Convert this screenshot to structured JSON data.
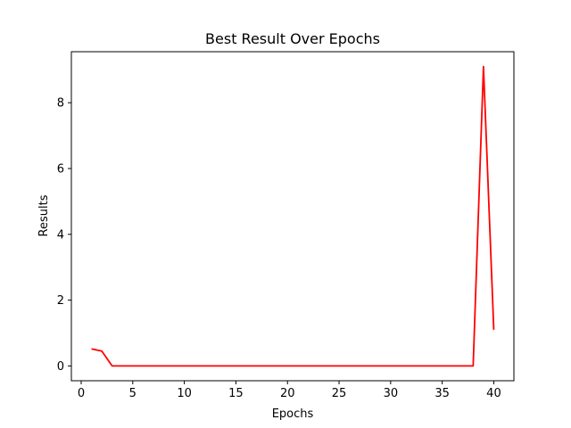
{
  "chart_data": {
    "type": "line",
    "title": "Best Result Over Epochs",
    "xlabel": "Epochs",
    "ylabel": "Results",
    "xlim": [
      -0.95,
      41.95
    ],
    "ylim": [
      -0.45,
      9.55
    ],
    "xticks": [
      0,
      5,
      10,
      15,
      20,
      25,
      30,
      35,
      40
    ],
    "yticks": [
      0,
      2,
      4,
      6,
      8
    ],
    "grid": false,
    "legend": "none",
    "series": [
      {
        "color": "#ff0000",
        "x": [
          1,
          2,
          3,
          4,
          5,
          6,
          7,
          8,
          9,
          10,
          11,
          12,
          13,
          14,
          15,
          16,
          17,
          18,
          19,
          20,
          21,
          22,
          23,
          24,
          25,
          26,
          27,
          28,
          29,
          30,
          31,
          32,
          33,
          34,
          35,
          36,
          37,
          38,
          39,
          40
        ],
        "y": [
          0.52,
          0.45,
          0.0,
          0.0,
          0.0,
          0.0,
          0.0,
          0.0,
          0.0,
          0.0,
          0.0,
          0.0,
          0.0,
          0.0,
          0.0,
          0.0,
          0.0,
          0.0,
          0.0,
          0.0,
          0.0,
          0.0,
          0.0,
          0.0,
          0.0,
          0.0,
          0.0,
          0.0,
          0.0,
          0.0,
          0.0,
          0.0,
          0.0,
          0.0,
          0.0,
          0.0,
          0.0,
          0.0,
          9.1,
          1.1
        ]
      }
    ]
  }
}
